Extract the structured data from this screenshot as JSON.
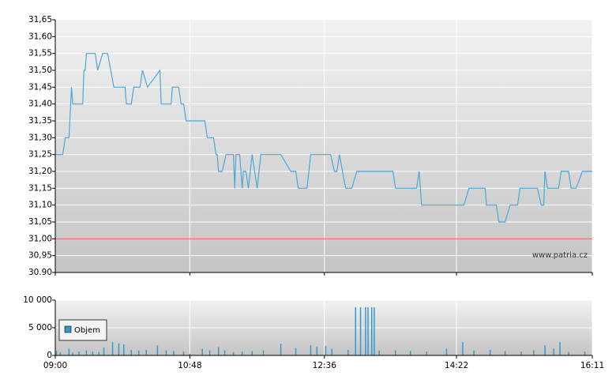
{
  "chart_data": [
    {
      "type": "line",
      "ylim": [
        30.9,
        31.65
      ],
      "xlim": [
        540,
        971
      ],
      "yticks": [
        {
          "value": 31.65,
          "label": "31,65"
        },
        {
          "value": 31.6,
          "label": "31,60"
        },
        {
          "value": 31.55,
          "label": "31,55"
        },
        {
          "value": 31.5,
          "label": "31,50"
        },
        {
          "value": 31.45,
          "label": "31,45"
        },
        {
          "value": 31.4,
          "label": "31,40"
        },
        {
          "value": 31.35,
          "label": "31,35"
        },
        {
          "value": 31.3,
          "label": "31,30"
        },
        {
          "value": 31.25,
          "label": "31,25"
        },
        {
          "value": 31.2,
          "label": "31,20"
        },
        {
          "value": 31.15,
          "label": "31,15"
        },
        {
          "value": 31.1,
          "label": "31,10"
        },
        {
          "value": 31.05,
          "label": "31,05"
        },
        {
          "value": 31,
          "label": "31,00"
        },
        {
          "value": 30.95,
          "label": "30,95"
        },
        {
          "value": 30.9,
          "label": "30.90"
        }
      ],
      "grid": true,
      "reference_value": 31,
      "reference_color": "#e06060",
      "watermark": "www.patria.cz",
      "series": [
        {
          "color": "#4aa8d8",
          "x": [
            540,
            546,
            548,
            551,
            553,
            554,
            562,
            563,
            564,
            565,
            572,
            574,
            578,
            582,
            587,
            596,
            597,
            601,
            603,
            608,
            610,
            614,
            624,
            625,
            633,
            634,
            639,
            641,
            643,
            645,
            660,
            662,
            667,
            669,
            670,
            671,
            674,
            677,
            683,
            684,
            685,
            688,
            690,
            691,
            693,
            695,
            698,
            700,
            702,
            705,
            721,
            729,
            733,
            735,
            742,
            745,
            761,
            764,
            766,
            768,
            773,
            778,
            782,
            811,
            813,
            830,
            832,
            834,
            868,
            872,
            885,
            886,
            894,
            896,
            901,
            905,
            911,
            913,
            927,
            930,
            932,
            933,
            935,
            944,
            946,
            952,
            954,
            958,
            963,
            971
          ],
          "values": [
            31.25,
            31.25,
            31.3,
            31.3,
            31.45,
            31.4,
            31.4,
            31.5,
            31.5,
            31.55,
            31.55,
            31.5,
            31.55,
            31.55,
            31.45,
            31.45,
            31.4,
            31.4,
            31.45,
            31.45,
            31.5,
            31.45,
            31.5,
            31.4,
            31.4,
            31.45,
            31.45,
            31.4,
            31.4,
            31.35,
            31.35,
            31.3,
            31.3,
            31.25,
            31.25,
            31.2,
            31.2,
            31.25,
            31.25,
            31.15,
            31.25,
            31.25,
            31.15,
            31.2,
            31.2,
            31.15,
            31.25,
            31.2,
            31.15,
            31.25,
            31.25,
            31.2,
            31.2,
            31.15,
            31.15,
            31.25,
            31.25,
            31.2,
            31.2,
            31.25,
            31.15,
            31.15,
            31.2,
            31.2,
            31.15,
            31.15,
            31.2,
            31.1,
            31.1,
            31.15,
            31.15,
            31.1,
            31.1,
            31.05,
            31.05,
            31.1,
            31.1,
            31.15,
            31.15,
            31.1,
            31.1,
            31.2,
            31.15,
            31.15,
            31.2,
            31.2,
            31.15,
            31.15,
            31.2,
            31.2
          ]
        }
      ]
    },
    {
      "type": "bar",
      "ylim": [
        0,
        10000
      ],
      "xlim": [
        540,
        971
      ],
      "yticks": [
        {
          "value": 10000,
          "label": "10 000"
        },
        {
          "value": 5000,
          "label": "5 000"
        },
        0
      ],
      "xticks": [
        {
          "value": 540,
          "label": "09:00"
        },
        {
          "value": 648,
          "label": "10:48"
        },
        {
          "value": 756,
          "label": "12:36"
        },
        {
          "value": 862,
          "label": "14:22"
        },
        {
          "value": 971,
          "label": "16:11"
        }
      ],
      "grid": true,
      "legend": "top-left",
      "series": [
        {
          "name": "Objem",
          "color": "#3399cc",
          "x": [
            541,
            544,
            551,
            554,
            559,
            565,
            570,
            575,
            579,
            586,
            591,
            595,
            601,
            607,
            613,
            622,
            629,
            635,
            643,
            648,
            658,
            664,
            671,
            676,
            683,
            690,
            698,
            707,
            721,
            733,
            745,
            750,
            757,
            762,
            775,
            781,
            785,
            789,
            791,
            794,
            796,
            800,
            813,
            825,
            838,
            854,
            867,
            876,
            889,
            901,
            914,
            924,
            933,
            940,
            945,
            952,
            965
          ],
          "values": [
            800,
            600,
            1200,
            500,
            700,
            900,
            700,
            600,
            1400,
            2400,
            2200,
            2000,
            1000,
            900,
            1000,
            1800,
            900,
            800,
            700,
            300,
            1200,
            900,
            1500,
            900,
            600,
            700,
            800,
            900,
            2100,
            1300,
            1800,
            1600,
            1700,
            1200,
            1000,
            8700,
            8700,
            8700,
            8700,
            8700,
            8700,
            900,
            900,
            800,
            700,
            1200,
            2400,
            900,
            1000,
            800,
            700,
            900,
            1800,
            1200,
            2400,
            600,
            700
          ]
        }
      ]
    }
  ]
}
